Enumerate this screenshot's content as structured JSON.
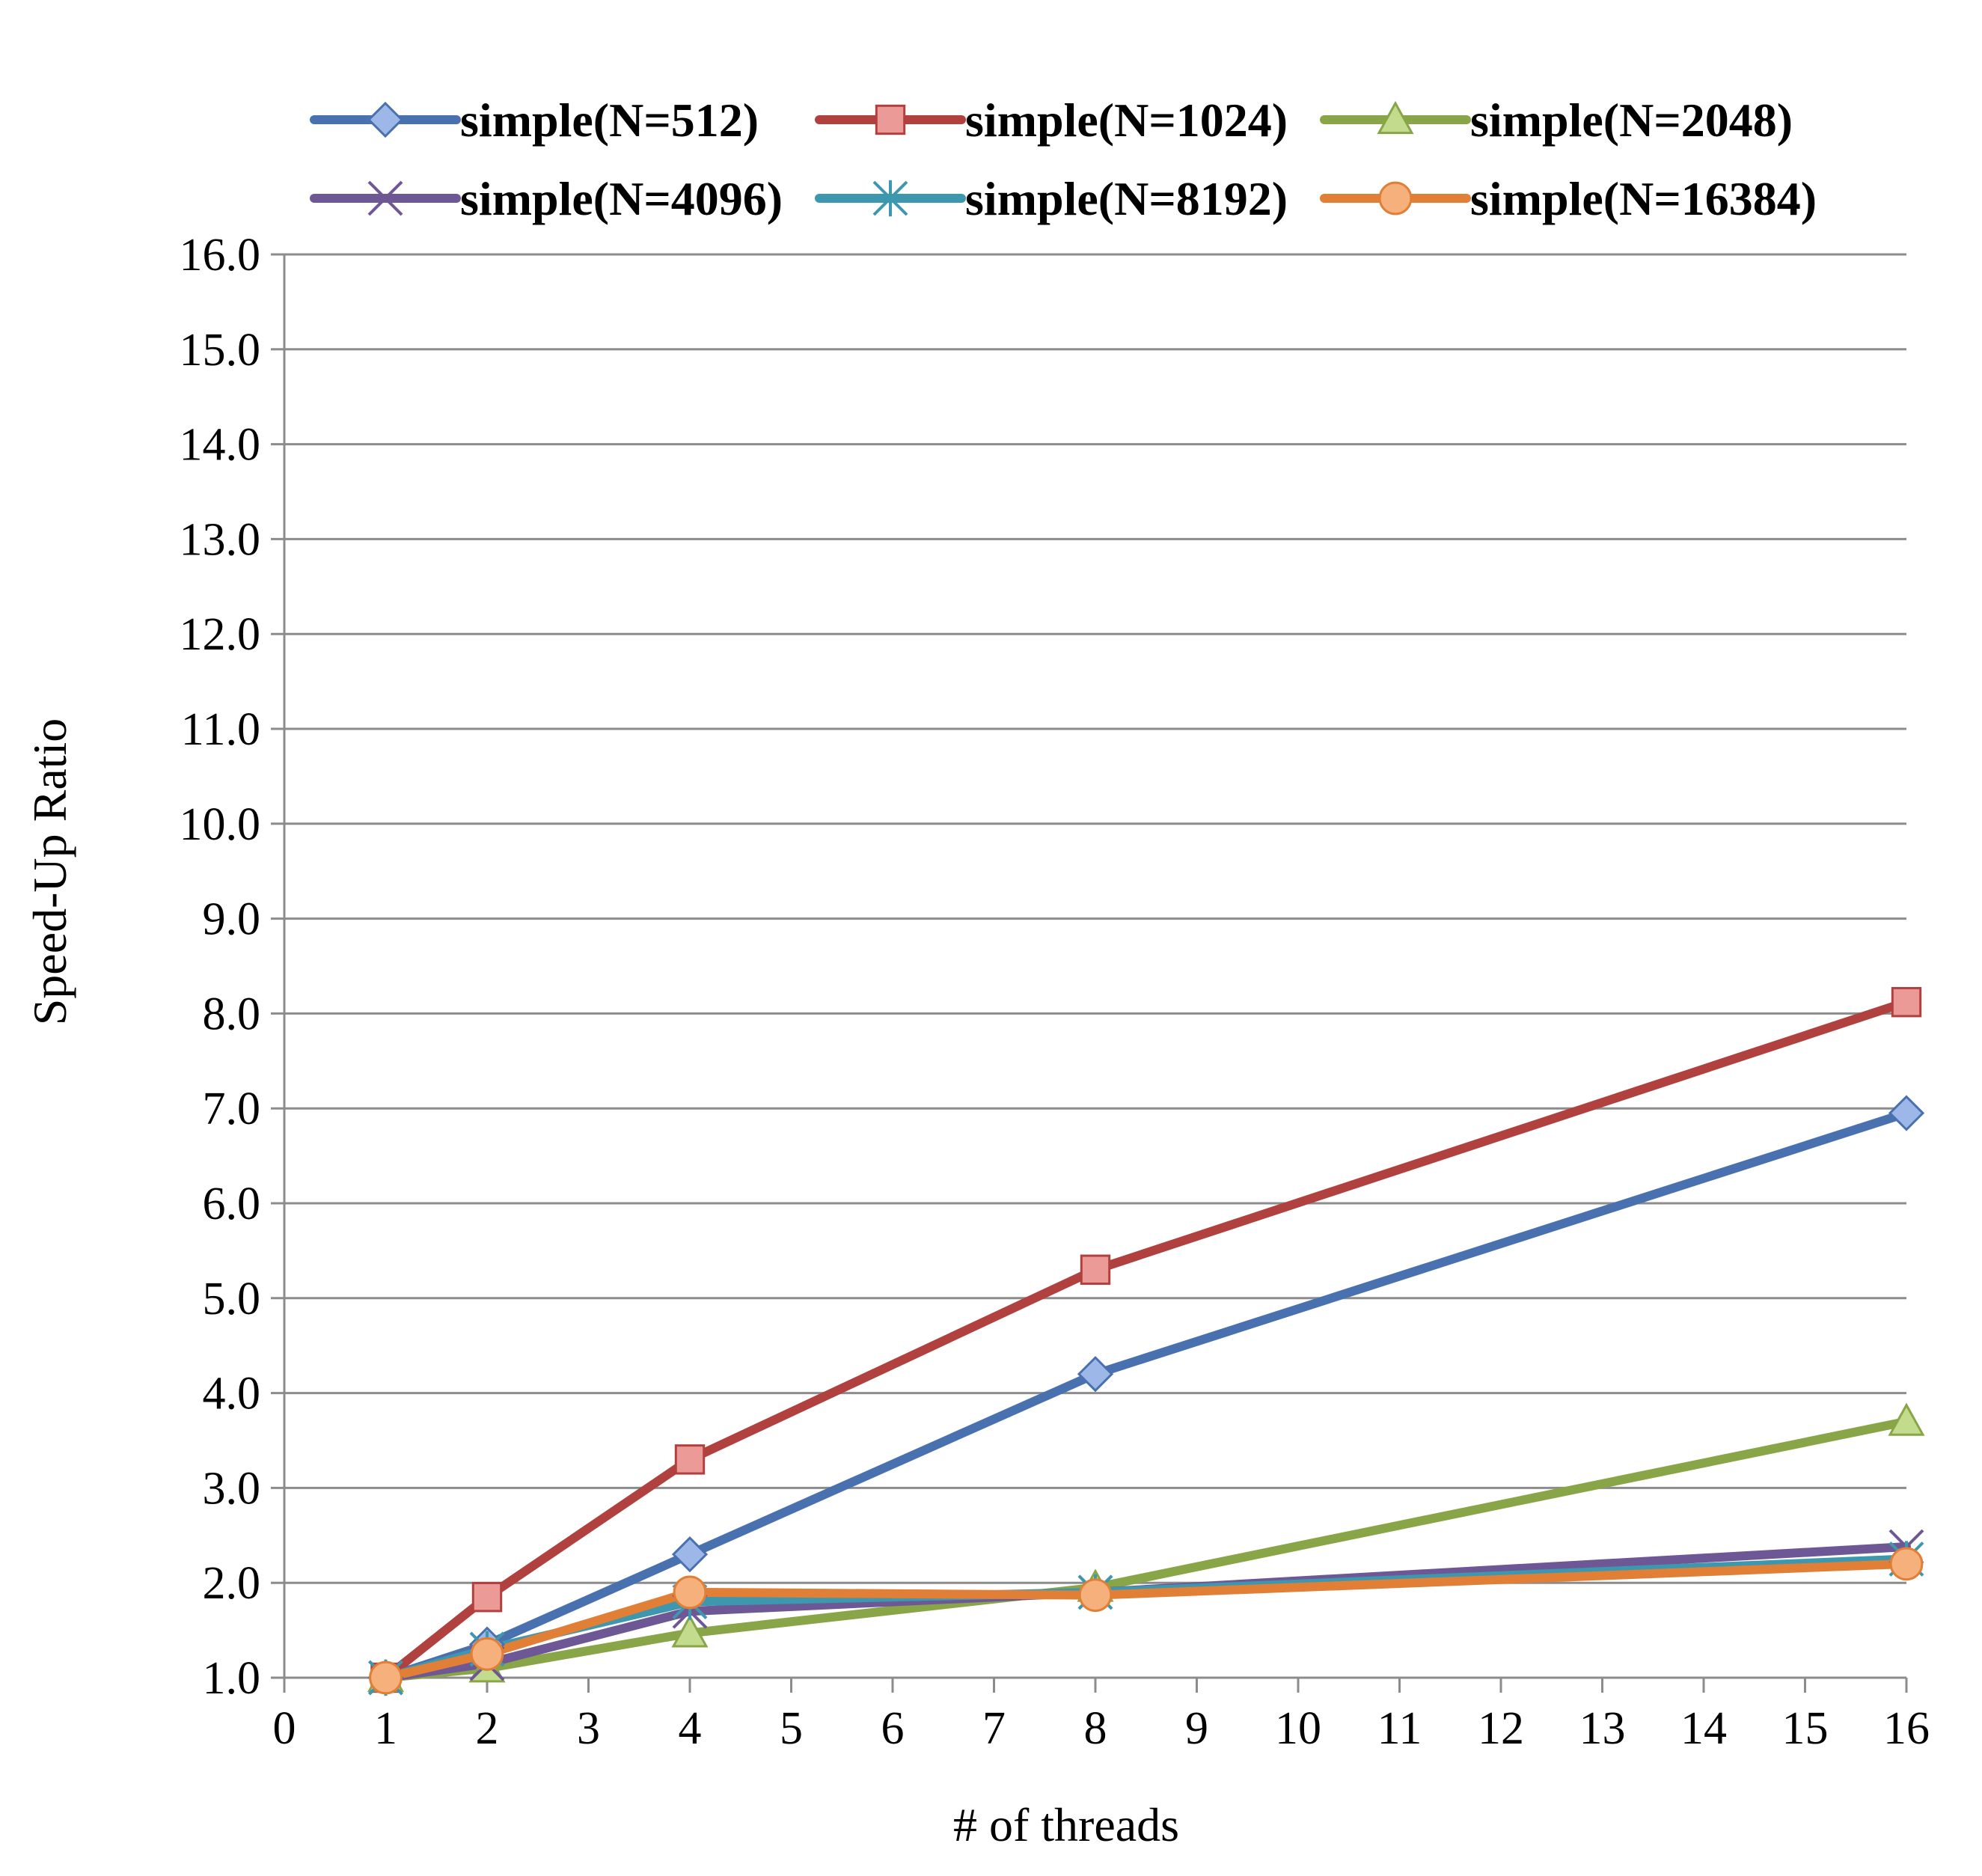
{
  "chart_data": {
    "type": "line",
    "title": "",
    "xlabel": "# of threads",
    "ylabel": "Speed-Up Ratio",
    "xlim": [
      0,
      16
    ],
    "ylim": [
      1.0,
      16.0
    ],
    "x_ticks": [
      "0",
      "1",
      "2",
      "3",
      "4",
      "5",
      "6",
      "7",
      "8",
      "9",
      "10",
      "11",
      "12",
      "13",
      "14",
      "15",
      "16"
    ],
    "y_ticks": [
      "1.0",
      "2.0",
      "3.0",
      "4.0",
      "5.0",
      "6.0",
      "7.0",
      "8.0",
      "9.0",
      "10.0",
      "11.0",
      "12.0",
      "13.0",
      "14.0",
      "15.0",
      "16.0"
    ],
    "grid": "horizontal",
    "legend_position": "top",
    "x": [
      1,
      2,
      4,
      8,
      16
    ],
    "series": [
      {
        "name": "simple(N=512)",
        "color": "#4A71AF",
        "marker": "diamond",
        "marker_fill": "#9DB7E8",
        "values": [
          1.0,
          1.35,
          2.3,
          4.2,
          6.95
        ]
      },
      {
        "name": "simple(N=1024)",
        "color": "#B0413E",
        "marker": "square",
        "marker_fill": "#EB9A98",
        "values": [
          1.0,
          1.85,
          3.3,
          5.3,
          8.12
        ]
      },
      {
        "name": "simple(N=2048)",
        "color": "#88A547",
        "marker": "triangle",
        "marker_fill": "#C2DB8C",
        "values": [
          1.0,
          1.1,
          1.47,
          1.95,
          3.7
        ]
      },
      {
        "name": "simple(N=4096)",
        "color": "#6E5795",
        "marker": "x",
        "marker_fill": "#6E5795",
        "values": [
          1.0,
          1.15,
          1.7,
          1.9,
          2.38
        ]
      },
      {
        "name": "simple(N=8192)",
        "color": "#3D97AE",
        "marker": "star",
        "marker_fill": "#3D97AE",
        "values": [
          1.0,
          1.3,
          1.8,
          1.9,
          2.25
        ]
      },
      {
        "name": "simple(N=16384)",
        "color": "#E07F35",
        "marker": "circle",
        "marker_fill": "#F6B07B",
        "values": [
          1.0,
          1.25,
          1.9,
          1.87,
          2.2
        ]
      }
    ]
  }
}
